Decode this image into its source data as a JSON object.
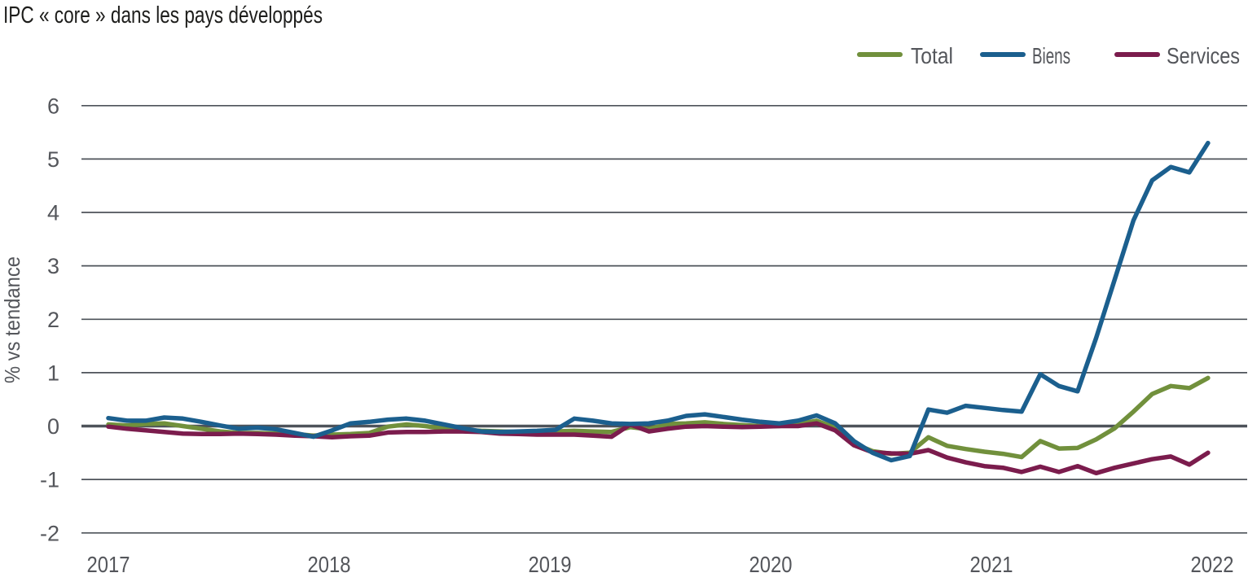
{
  "title": "IPC « core » dans les pays développés",
  "legend": {
    "position": "top-right",
    "items": [
      {
        "label": "Total",
        "color": "#71903c"
      },
      {
        "label": "Biens",
        "color": "#1b5f8e"
      },
      {
        "label": "Services",
        "color": "#7b1c4d"
      }
    ]
  },
  "colors": {
    "title_text": "#1d1d1b",
    "axis_text": "#54565b",
    "gridline": "#4e535a",
    "zero_line": "#4e535a",
    "background": "#ffffff"
  },
  "y_axis": {
    "label": "% vs tendance",
    "tick_labels": [
      "6",
      "5",
      "4",
      "3",
      "2",
      "1",
      "0",
      "-1",
      "-2"
    ]
  },
  "x_axis": {
    "tick_labels": [
      "2017",
      "2018",
      "2019",
      "2020",
      "2021",
      "2022"
    ]
  },
  "chart_data": {
    "type": "line",
    "title": "IPC « core » dans les pays développés",
    "ylabel": "% vs tendance",
    "xlabel": "",
    "ylim": [
      -2,
      6
    ],
    "y_ticks": [
      6,
      5,
      4,
      3,
      2,
      1,
      0,
      -1,
      -2
    ],
    "grid": "horizontal",
    "zero_line_emphasized": true,
    "legend_position": "top-right",
    "x_tick_labels": [
      "2017",
      "2018",
      "2019",
      "2020",
      "2021",
      "2022"
    ],
    "x_frequency": "monthly",
    "x_start": "2017-01",
    "x_end": "2021-12",
    "series": [
      {
        "name": "Total",
        "color": "#71903c",
        "values": [
          0.03,
          0.01,
          0.04,
          0.05,
          0.0,
          -0.05,
          -0.1,
          -0.13,
          -0.13,
          -0.14,
          -0.15,
          -0.18,
          -0.16,
          -0.15,
          -0.13,
          -0.01,
          0.03,
          0.0,
          -0.05,
          -0.07,
          -0.09,
          -0.1,
          -0.11,
          -0.11,
          -0.1,
          -0.09,
          -0.1,
          -0.11,
          -0.02,
          -0.06,
          0.04,
          0.05,
          0.07,
          0.04,
          0.02,
          0.0,
          0.0,
          0.04,
          0.1,
          -0.03,
          -0.33,
          -0.47,
          -0.52,
          -0.5,
          -0.21,
          -0.37,
          -0.43,
          -0.48,
          -0.52,
          -0.58,
          -0.28,
          -0.42,
          -0.41,
          -0.25,
          -0.04,
          0.27,
          0.6,
          0.75,
          0.71,
          0.9
        ]
      },
      {
        "name": "Biens",
        "color": "#1b5f8e",
        "values": [
          0.15,
          0.1,
          0.1,
          0.16,
          0.14,
          0.08,
          0.01,
          -0.05,
          -0.03,
          -0.06,
          -0.13,
          -0.2,
          -0.08,
          0.05,
          0.08,
          0.12,
          0.14,
          0.1,
          0.03,
          -0.04,
          -0.1,
          -0.11,
          -0.1,
          -0.09,
          -0.07,
          0.14,
          0.1,
          0.05,
          0.04,
          0.05,
          0.1,
          0.19,
          0.22,
          0.17,
          0.12,
          0.08,
          0.05,
          0.1,
          0.2,
          0.05,
          -0.28,
          -0.5,
          -0.64,
          -0.56,
          0.31,
          0.25,
          0.38,
          0.34,
          0.3,
          0.27,
          0.97,
          0.75,
          0.65,
          1.65,
          2.75,
          3.85,
          4.6,
          4.85,
          4.75,
          5.3
        ]
      },
      {
        "name": "Services",
        "color": "#7b1c4d",
        "values": [
          -0.01,
          -0.05,
          -0.08,
          -0.11,
          -0.14,
          -0.15,
          -0.15,
          -0.14,
          -0.15,
          -0.16,
          -0.18,
          -0.19,
          -0.21,
          -0.19,
          -0.18,
          -0.12,
          -0.11,
          -0.11,
          -0.1,
          -0.1,
          -0.11,
          -0.14,
          -0.15,
          -0.16,
          -0.16,
          -0.16,
          -0.18,
          -0.2,
          0.03,
          -0.1,
          -0.05,
          -0.01,
          0.0,
          -0.01,
          -0.02,
          -0.01,
          0.0,
          0.0,
          0.05,
          -0.08,
          -0.36,
          -0.49,
          -0.51,
          -0.52,
          -0.45,
          -0.59,
          -0.68,
          -0.75,
          -0.78,
          -0.86,
          -0.76,
          -0.86,
          -0.75,
          -0.88,
          -0.78,
          -0.7,
          -0.62,
          -0.57,
          -0.72,
          -0.5
        ]
      }
    ]
  }
}
